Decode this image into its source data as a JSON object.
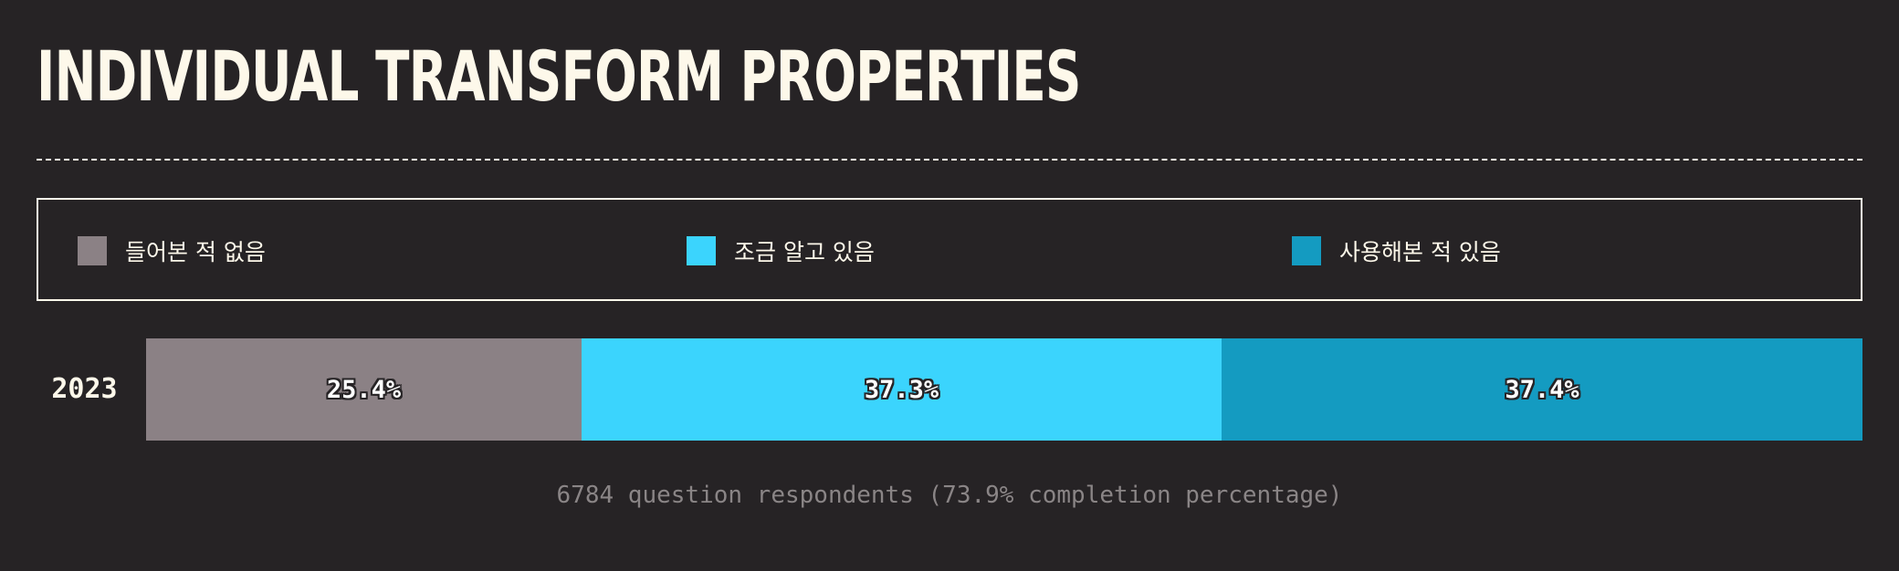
{
  "title": "INDIVIDUAL TRANSFORM PROPERTIES",
  "chart_data": {
    "type": "bar",
    "orientation": "horizontal",
    "stacked": "percent",
    "categories": [
      "2023"
    ],
    "series": [
      {
        "name": "들어본 적 없음",
        "values": [
          25.4
        ],
        "color": "#8b8185"
      },
      {
        "name": "조금 알고 있음",
        "values": [
          37.3
        ],
        "color": "#3bd4fd"
      },
      {
        "name": "사용해본 적 있음",
        "values": [
          37.4
        ],
        "color": "#149bc1"
      }
    ],
    "value_labels": [
      "25.4%",
      "37.3%",
      "37.4%"
    ],
    "legend_position": "top",
    "footnote": "6784 question respondents (73.9% completion percentage)"
  }
}
